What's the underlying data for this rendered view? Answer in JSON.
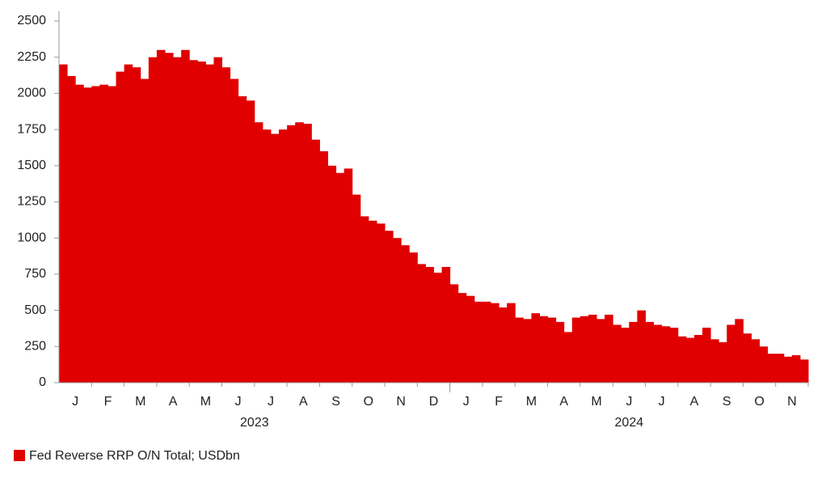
{
  "chart_data": {
    "type": "bar",
    "categories": [
      "J",
      "F",
      "M",
      "A",
      "M",
      "J",
      "J",
      "A",
      "S",
      "O",
      "N",
      "D",
      "J",
      "F",
      "M",
      "A",
      "M",
      "J",
      "J",
      "A",
      "S",
      "O",
      "N"
    ],
    "year_labels": [
      {
        "label": "2023",
        "from": 0,
        "to": 11
      },
      {
        "label": "2024",
        "from": 12,
        "to": 22
      }
    ],
    "series": [
      {
        "name": "Fed Reverse RRP O/N Total; USDbn",
        "color": "#e00000",
        "values": [
          [
            2200,
            2120,
            2060,
            2040
          ],
          [
            2050,
            2060,
            2050,
            2150
          ],
          [
            2200,
            2180,
            2100,
            2250
          ],
          [
            2300,
            2280,
            2250,
            2300
          ],
          [
            2230,
            2220,
            2200,
            2250
          ],
          [
            2180,
            2100,
            1980,
            1950
          ],
          [
            1800,
            1750,
            1720,
            1750
          ],
          [
            1780,
            1800,
            1790,
            1680
          ],
          [
            1600,
            1500,
            1450,
            1480
          ],
          [
            1300,
            1150,
            1120,
            1100
          ],
          [
            1050,
            1000,
            950,
            900
          ],
          [
            820,
            800,
            760,
            800
          ],
          [
            680,
            620,
            600,
            560
          ],
          [
            560,
            550,
            520,
            550
          ],
          [
            450,
            440,
            480,
            460
          ],
          [
            450,
            420,
            350,
            450
          ],
          [
            460,
            470,
            440,
            470
          ],
          [
            400,
            380,
            420,
            500
          ],
          [
            420,
            400,
            390,
            380
          ],
          [
            320,
            310,
            330,
            380
          ],
          [
            300,
            280,
            400,
            440
          ],
          [
            340,
            300,
            250,
            200
          ],
          [
            200,
            180,
            190,
            160
          ]
        ]
      }
    ],
    "ylim": [
      0,
      2500
    ],
    "yticks": [
      0,
      250,
      500,
      750,
      1000,
      1250,
      1500,
      1750,
      2000,
      2250,
      2500
    ]
  }
}
